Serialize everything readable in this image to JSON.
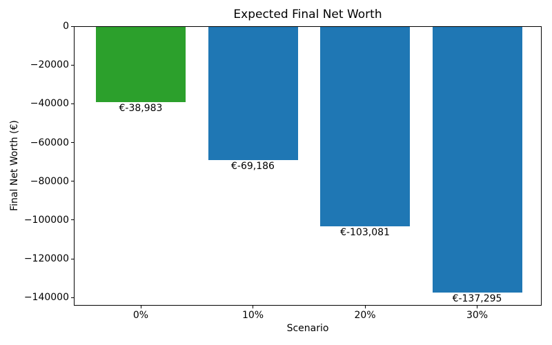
{
  "chart_data": {
    "type": "bar",
    "title": "Expected Final Net Worth",
    "xlabel": "Scenario",
    "ylabel": "Final Net Worth (€)",
    "categories": [
      "0%",
      "10%",
      "20%",
      "30%"
    ],
    "values": [
      -38983,
      -69186,
      -103081,
      -137295
    ],
    "bar_labels": [
      "€-38,983",
      "€-69,186",
      "€-103,081",
      "€-137,295"
    ],
    "bar_colors": [
      "#2ca02c",
      "#1f77b4",
      "#1f77b4",
      "#1f77b4"
    ],
    "y_ticks": [
      0,
      -20000,
      -40000,
      -60000,
      -80000,
      -100000,
      -120000,
      -140000
    ],
    "y_tick_labels": [
      "0",
      "−20000",
      "−40000",
      "−60000",
      "−80000",
      "−100000",
      "−120000",
      "−140000"
    ],
    "ylim": [
      -144160,
      0
    ],
    "grid": false,
    "legend": null,
    "background_color": "#ffffff",
    "accent_colors": {
      "green": "#2ca02c",
      "blue": "#1f77b4"
    }
  }
}
